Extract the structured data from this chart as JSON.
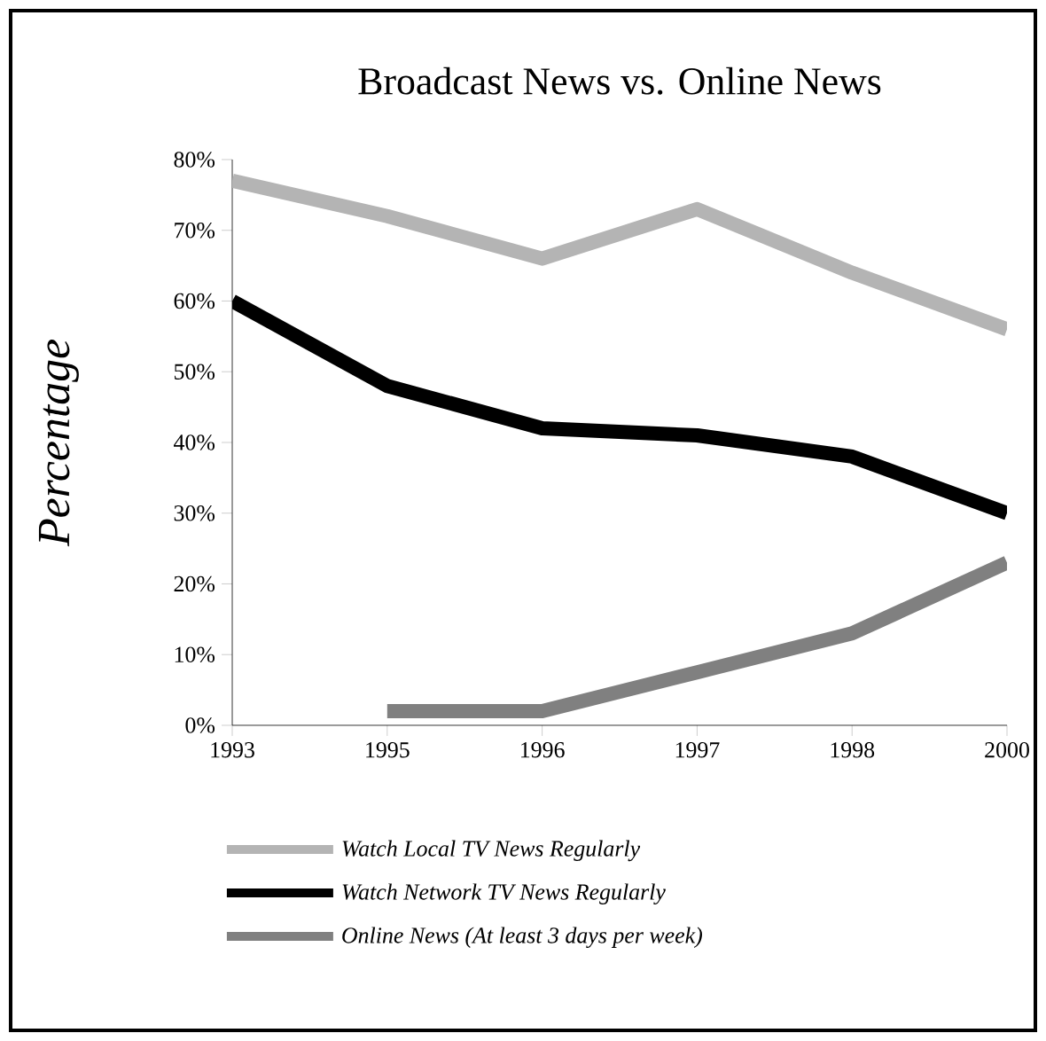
{
  "chart_data": {
    "type": "line",
    "title": "Broadcast News vs. Online News",
    "ylabel": "Percentage",
    "categories": [
      "1993",
      "1995",
      "1996",
      "1997",
      "1998",
      "2000"
    ],
    "series": [
      {
        "name": "Watch Local TV News Regularly",
        "color": "#b4b4b4",
        "values": [
          77,
          72,
          66,
          73,
          64,
          56
        ]
      },
      {
        "name": "Watch Network TV News Regularly",
        "color": "#000000",
        "values": [
          60,
          48,
          42,
          41,
          38,
          30
        ]
      },
      {
        "name": "Online News (At least 3 days per week)",
        "color": "#808080",
        "values": [
          null,
          2,
          2,
          7.5,
          13,
          23
        ]
      }
    ],
    "ylim": [
      0,
      80
    ],
    "yticks": [
      {
        "value": 0,
        "label": "0%"
      },
      {
        "value": 10,
        "label": "10%"
      },
      {
        "value": 20,
        "label": "20%"
      },
      {
        "value": 30,
        "label": "30%"
      },
      {
        "value": 40,
        "label": "40%"
      },
      {
        "value": 50,
        "label": "50%"
      },
      {
        "value": 60,
        "label": "60%"
      },
      {
        "value": 70,
        "label": "70%"
      },
      {
        "value": 80,
        "label": "80%"
      }
    ],
    "grid": false,
    "legend": "bottom",
    "marker": "none",
    "line_style": "solid"
  }
}
